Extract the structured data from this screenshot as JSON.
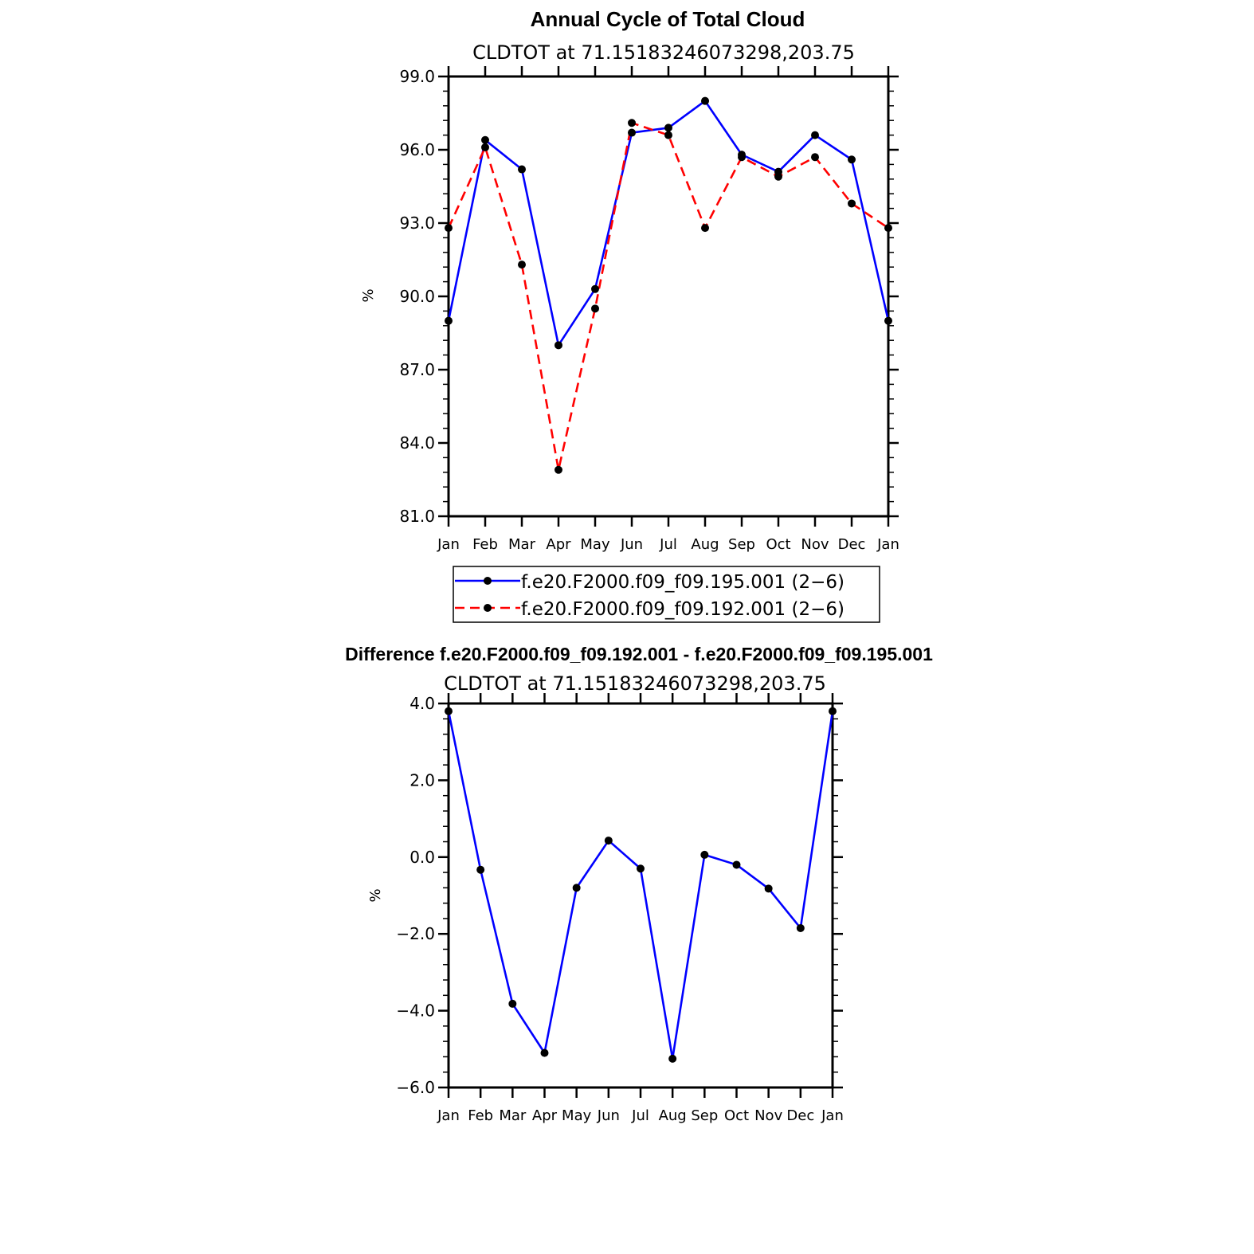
{
  "chart_data": [
    {
      "type": "line",
      "title": "Annual Cycle of Total Cloud",
      "subtitle": "CLDTOT at 71.15183246073298,203.75",
      "xlabel": "",
      "ylabel": "%",
      "ylim": [
        81.0,
        99.0
      ],
      "yticks": [
        "81.0",
        "84.0",
        "87.0",
        "90.0",
        "93.0",
        "96.0",
        "99.0"
      ],
      "ytick_values": [
        81,
        84,
        87,
        90,
        93,
        96,
        99
      ],
      "categories": [
        "Jan",
        "Feb",
        "Mar",
        "Apr",
        "May",
        "Jun",
        "Jul",
        "Aug",
        "Sep",
        "Oct",
        "Nov",
        "Dec",
        "Jan"
      ],
      "series": [
        {
          "name": "f.e20.F2000.f09_f09.195.001 (2−6)",
          "color": "#0000ff",
          "dash": "solid",
          "values": [
            89.0,
            96.4,
            95.2,
            88.0,
            90.3,
            96.7,
            96.9,
            98.0,
            95.8,
            95.1,
            96.6,
            95.6,
            89.0
          ]
        },
        {
          "name": "f.e20.F2000.f09_f09.192.001 (2−6)",
          "color": "#ff0000",
          "dash": "dashed",
          "values": [
            92.8,
            96.1,
            91.3,
            82.9,
            89.5,
            97.1,
            96.6,
            92.8,
            95.7,
            94.9,
            95.7,
            93.8,
            92.8
          ]
        }
      ],
      "legend": [
        "f.e20.F2000.f09_f09.195.001 (2−6)",
        "f.e20.F2000.f09_f09.192.001 (2−6)"
      ]
    },
    {
      "type": "line",
      "title": "Difference f.e20.F2000.f09_f09.192.001 - f.e20.F2000.f09_f09.195.001",
      "subtitle": "CLDTOT at 71.15183246073298,203.75",
      "xlabel": "",
      "ylabel": "%",
      "ylim": [
        -6.0,
        4.0
      ],
      "yticks": [
        "−6.0",
        "−4.0",
        "−2.0",
        "0.0",
        "2.0",
        "4.0"
      ],
      "ytick_values": [
        -6,
        -4,
        -2,
        0,
        2,
        4
      ],
      "categories": [
        "Jan",
        "Feb",
        "Mar",
        "Apr",
        "May",
        "Jun",
        "Jul",
        "Aug",
        "Sep",
        "Oct",
        "Nov",
        "Dec",
        "Jan"
      ],
      "series": [
        {
          "name": "difference",
          "color": "#0000ff",
          "dash": "solid",
          "values": [
            3.8,
            -0.33,
            -3.82,
            -5.1,
            -0.8,
            0.43,
            -0.3,
            -5.25,
            0.06,
            -0.2,
            -0.82,
            -1.85,
            3.8
          ]
        }
      ]
    }
  ]
}
